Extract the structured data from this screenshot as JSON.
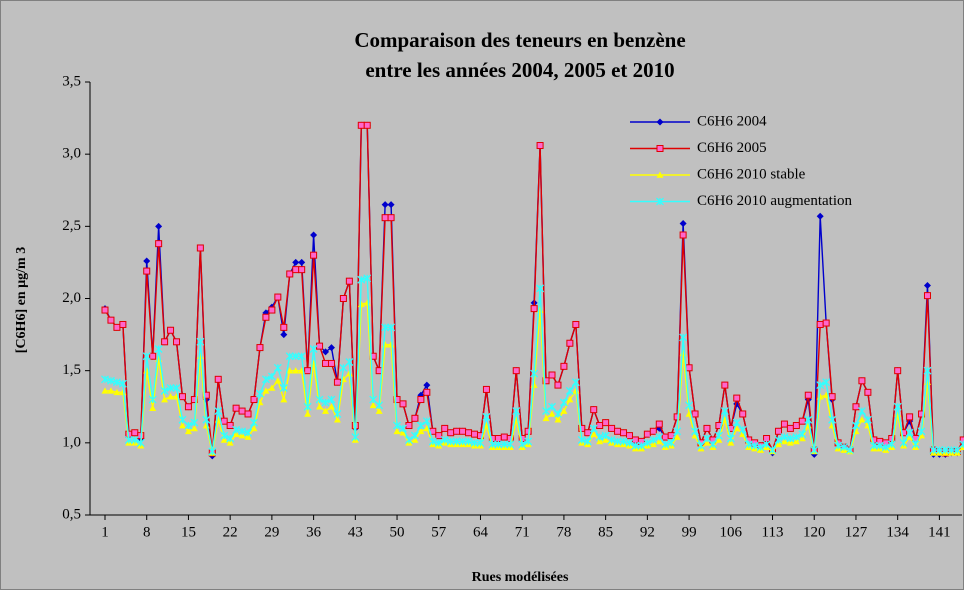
{
  "chart_data": {
    "type": "line",
    "title": [
      "Comparaison des teneurs en benzène",
      "entre les années 2004, 2005 et 2010"
    ],
    "xlabel": "Rues modélisées",
    "ylabel": "[C6H6] en µg/m 3",
    "legend": "upper right",
    "ylim": [
      0.5,
      3.5
    ],
    "yticks": [
      {
        "value": 0.5,
        "label": "0,5"
      },
      {
        "value": 1,
        "label": "1,0"
      },
      {
        "value": 1.5,
        "label": "1,5"
      },
      {
        "value": 2,
        "label": "2,0"
      },
      {
        "value": 2.5,
        "label": "2,5"
      },
      {
        "value": 3,
        "label": "3,0"
      },
      {
        "value": 3.5,
        "label": "3,5"
      }
    ],
    "categories": [
      "1",
      null,
      null,
      null,
      null,
      null,
      null,
      "8",
      null,
      null,
      null,
      null,
      null,
      null,
      "15",
      null,
      null,
      null,
      null,
      null,
      null,
      "22",
      null,
      null,
      null,
      null,
      null,
      null,
      "29",
      null,
      null,
      null,
      null,
      null,
      null,
      "36",
      null,
      null,
      null,
      null,
      null,
      null,
      "43",
      null,
      null,
      null,
      null,
      null,
      null,
      "50",
      null,
      null,
      null,
      null,
      null,
      null,
      "57",
      null,
      null,
      null,
      null,
      null,
      null,
      "64",
      null,
      null,
      null,
      null,
      null,
      null,
      "71",
      null,
      null,
      null,
      null,
      null,
      null,
      "78",
      null,
      null,
      null,
      null,
      null,
      null,
      "85",
      null,
      null,
      null,
      null,
      null,
      null,
      "92",
      null,
      null,
      null,
      null,
      null,
      null,
      "99",
      null,
      null,
      null,
      null,
      null,
      null,
      "106",
      null,
      null,
      null,
      null,
      null,
      null,
      "113",
      null,
      null,
      null,
      null,
      null,
      null,
      "120",
      null,
      null,
      null,
      null,
      null,
      null,
      "127",
      null,
      null,
      null,
      null,
      null,
      null,
      "134",
      null,
      null,
      null,
      null,
      null,
      null,
      "141",
      null,
      null,
      null,
      null
    ],
    "series": [
      {
        "name": "C6H6 2004",
        "color": "#0000cc",
        "marker": "diamond",
        "values": [
          1.93,
          1.85,
          1.8,
          1.82,
          1.06,
          1.07,
          1.03,
          2.26,
          1.6,
          2.5,
          1.7,
          1.78,
          1.7,
          1.32,
          1.25,
          1.3,
          2.35,
          1.3,
          0.91,
          1.44,
          1.15,
          1.12,
          1.24,
          1.22,
          1.2,
          1.3,
          1.66,
          1.9,
          1.94,
          2.01,
          1.75,
          2.17,
          2.25,
          2.25,
          1.5,
          2.44,
          1.67,
          1.63,
          1.66,
          1.42,
          2,
          2.12,
          1.1,
          3.2,
          3.2,
          1.6,
          1.5,
          2.65,
          2.65,
          1.3,
          1.27,
          1.12,
          1.17,
          1.33,
          1.4,
          1.08,
          1.05,
          1.1,
          1.07,
          1.08,
          1.08,
          1.07,
          1.06,
          1.05,
          1.37,
          1.03,
          1.03,
          1.04,
          1.03,
          1.5,
          1.03,
          1.08,
          1.97,
          3.06,
          1.43,
          1.47,
          1.4,
          1.53,
          1.69,
          1.82,
          1.1,
          1.07,
          1.23,
          1.12,
          1.14,
          1.1,
          1.08,
          1.07,
          1.05,
          1.02,
          1.01,
          1.06,
          1.08,
          1.1,
          1.04,
          1.05,
          1.18,
          2.52,
          1.52,
          1.2,
          1,
          1.1,
          1.02,
          1.12,
          1.4,
          1.1,
          1.27,
          1.2,
          1.02,
          1,
          0.98,
          1.03,
          0.93,
          1.08,
          1.13,
          1.1,
          1.12,
          1.15,
          1.3,
          0.92,
          2.57,
          1.83,
          1.3,
          1,
          0.97,
          0.95,
          1.25,
          1.43,
          1.35,
          1.02,
          1.01,
          1,
          1.03,
          1.5,
          1.07,
          1.15,
          1.03,
          1.2,
          2.09,
          0.92,
          0.92,
          0.92,
          0.93,
          0.93,
          1.02
        ]
      },
      {
        "name": "C6H6 2005",
        "color": "#e00000",
        "marker": "square",
        "values": [
          1.92,
          1.85,
          1.8,
          1.82,
          1.06,
          1.07,
          1.05,
          2.19,
          1.6,
          2.38,
          1.7,
          1.78,
          1.7,
          1.32,
          1.25,
          1.3,
          2.35,
          1.33,
          0.93,
          1.44,
          1.15,
          1.12,
          1.24,
          1.22,
          1.2,
          1.3,
          1.66,
          1.87,
          1.92,
          2.01,
          1.8,
          2.17,
          2.2,
          2.2,
          1.5,
          2.3,
          1.67,
          1.55,
          1.55,
          1.42,
          2,
          2.12,
          1.12,
          3.2,
          3.2,
          1.6,
          1.5,
          2.56,
          2.56,
          1.3,
          1.27,
          1.12,
          1.17,
          1.3,
          1.35,
          1.08,
          1.05,
          1.1,
          1.07,
          1.08,
          1.08,
          1.07,
          1.06,
          1.05,
          1.37,
          1.03,
          1.03,
          1.04,
          1.03,
          1.5,
          1.03,
          1.08,
          1.93,
          3.06,
          1.43,
          1.47,
          1.4,
          1.53,
          1.69,
          1.82,
          1.1,
          1.07,
          1.23,
          1.12,
          1.14,
          1.1,
          1.08,
          1.07,
          1.05,
          1.02,
          1.01,
          1.06,
          1.08,
          1.13,
          1.04,
          1.05,
          1.18,
          2.44,
          1.52,
          1.2,
          1,
          1.1,
          1.02,
          1.12,
          1.4,
          1.1,
          1.31,
          1.2,
          1.02,
          1,
          0.98,
          1.03,
          0.95,
          1.08,
          1.13,
          1.1,
          1.12,
          1.15,
          1.33,
          0.95,
          1.82,
          1.83,
          1.32,
          1,
          0.97,
          0.95,
          1.25,
          1.43,
          1.35,
          1.02,
          1.01,
          1,
          1.03,
          1.5,
          1.07,
          1.18,
          1.03,
          1.2,
          2.02,
          0.95,
          0.94,
          0.93,
          0.94,
          0.94,
          1.02
        ]
      },
      {
        "name": "C6H6 2010 stable",
        "color": "#ffff00",
        "marker": "triangle",
        "values": [
          1.36,
          1.36,
          1.35,
          1.35,
          1,
          1,
          0.98,
          1.5,
          1.24,
          1.58,
          1.3,
          1.32,
          1.32,
          1.12,
          1.08,
          1.1,
          1.6,
          1.12,
          0.93,
          1.16,
          1.02,
          1,
          1.06,
          1.05,
          1.04,
          1.1,
          1.28,
          1.36,
          1.38,
          1.43,
          1.3,
          1.5,
          1.5,
          1.5,
          1.2,
          1.55,
          1.25,
          1.22,
          1.25,
          1.16,
          1.44,
          1.48,
          1.02,
          1.96,
          1.97,
          1.26,
          1.22,
          1.68,
          1.68,
          1.08,
          1.07,
          1,
          1.02,
          1.08,
          1.1,
          0.99,
          0.98,
          1,
          0.99,
          0.99,
          0.99,
          0.99,
          0.98,
          0.98,
          1.12,
          0.97,
          0.97,
          0.97,
          0.97,
          1.16,
          0.97,
          0.99,
          1.4,
          1.92,
          1.17,
          1.2,
          1.16,
          1.22,
          1.3,
          1.36,
          1,
          0.99,
          1.06,
          1.01,
          1.02,
          1,
          0.99,
          0.99,
          0.98,
          0.96,
          0.96,
          0.98,
          0.99,
          1.01,
          0.97,
          0.98,
          1.04,
          1.62,
          1.2,
          1.05,
          0.96,
          1,
          0.97,
          1.02,
          1.16,
          1,
          1.1,
          1.06,
          0.97,
          0.96,
          0.95,
          0.97,
          0.94,
          0.99,
          1.01,
          1,
          1.01,
          1.03,
          1.12,
          0.94,
          1.32,
          1.33,
          1.12,
          0.96,
          0.95,
          0.94,
          1.08,
          1.16,
          1.12,
          0.96,
          0.96,
          0.95,
          0.97,
          1.2,
          0.98,
          1.04,
          0.97,
          1.05,
          1.42,
          0.93,
          0.93,
          0.93,
          0.93,
          0.93,
          0.97
        ]
      },
      {
        "name": "C6H6 2010 augmentation",
        "color": "#33ffff",
        "marker": "star",
        "values": [
          1.44,
          1.43,
          1.42,
          1.41,
          1.02,
          1.02,
          1,
          1.6,
          1.3,
          1.65,
          1.36,
          1.38,
          1.38,
          1.16,
          1.12,
          1.14,
          1.7,
          1.16,
          0.94,
          1.22,
          1.05,
          1.03,
          1.09,
          1.08,
          1.07,
          1.14,
          1.34,
          1.44,
          1.46,
          1.52,
          1.38,
          1.6,
          1.6,
          1.6,
          1.25,
          1.65,
          1.3,
          1.28,
          1.3,
          1.2,
          1.52,
          1.56,
          1.04,
          2.13,
          2.14,
          1.3,
          1.26,
          1.8,
          1.8,
          1.12,
          1.1,
          1.02,
          1.05,
          1.12,
          1.15,
          1.01,
          1,
          1.02,
          1.01,
          1.01,
          1.01,
          1.01,
          1,
          1,
          1.18,
          0.99,
          0.99,
          0.99,
          0.99,
          1.22,
          0.99,
          1.01,
          1.48,
          2.07,
          1.22,
          1.25,
          1.2,
          1.28,
          1.36,
          1.42,
          1.02,
          1.01,
          1.1,
          1.04,
          1.05,
          1.02,
          1.01,
          1.01,
          1,
          0.98,
          0.98,
          1,
          1.02,
          1.04,
          0.99,
          1,
          1.08,
          1.73,
          1.26,
          1.08,
          0.98,
          1.03,
          0.99,
          1.05,
          1.22,
          1.03,
          1.14,
          1.09,
          0.99,
          0.98,
          0.97,
          0.99,
          0.95,
          1.02,
          1.04,
          1.03,
          1.04,
          1.06,
          1.16,
          0.95,
          1.4,
          1.42,
          1.16,
          0.98,
          0.97,
          0.95,
          1.12,
          1.22,
          1.16,
          0.98,
          0.98,
          0.97,
          0.99,
          1.25,
          1,
          1.07,
          0.99,
          1.08,
          1.5,
          0.95,
          0.95,
          0.95,
          0.95,
          0.95,
          0.99
        ]
      }
    ]
  }
}
